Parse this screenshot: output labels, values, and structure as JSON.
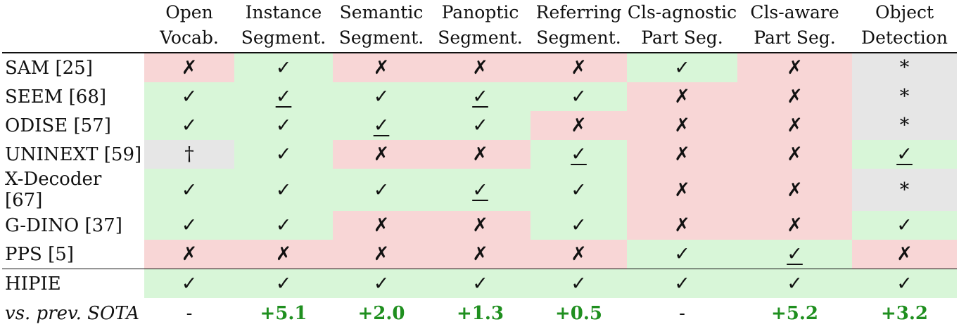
{
  "header": {
    "columns": [
      {
        "line1": "Open",
        "line2": "Vocab."
      },
      {
        "line1": "Instance",
        "line2": "Segment."
      },
      {
        "line1": "Semantic",
        "line2": "Segment."
      },
      {
        "line1": "Panoptic",
        "line2": "Segment."
      },
      {
        "line1": "Referring",
        "line2": "Segment."
      },
      {
        "line1": "Cls-agnostic",
        "line2": "Part Seg."
      },
      {
        "line1": "Cls-aware",
        "line2": "Part Seg."
      },
      {
        "line1": "Object",
        "line2": "Detection"
      }
    ]
  },
  "rows": [
    {
      "name": "SAM [25]",
      "cells": [
        "✗",
        "✓",
        "✗",
        "✗",
        "✗",
        "✓",
        "✗",
        "*"
      ]
    },
    {
      "name": "SEEM [68]",
      "cells": [
        "✓",
        "✓",
        "✓",
        "✓",
        "✓",
        "✗",
        "✗",
        "*"
      ]
    },
    {
      "name": "ODISE [57]",
      "cells": [
        "✓",
        "✓",
        "✓",
        "✓",
        "✗",
        "✗",
        "✗",
        "*"
      ]
    },
    {
      "name": "UNINEXT [59]",
      "cells": [
        "†",
        "✓",
        "✗",
        "✗",
        "✓",
        "✗",
        "✗",
        "✓"
      ]
    },
    {
      "name": "X-Decoder [67]",
      "cells": [
        "✓",
        "✓",
        "✓",
        "✓",
        "✓",
        "✗",
        "✗",
        "*"
      ]
    },
    {
      "name": "G-DINO [37]",
      "cells": [
        "✓",
        "✓",
        "✗",
        "✗",
        "✓",
        "✗",
        "✗",
        "✓"
      ]
    },
    {
      "name": "PPS [5]",
      "cells": [
        "✗",
        "✗",
        "✗",
        "✗",
        "✗",
        "✓",
        "✓",
        "✗"
      ]
    }
  ],
  "ours": {
    "name": "HIPIE",
    "cells": [
      "✓",
      "✓",
      "✓",
      "✓",
      "✓",
      "✓",
      "✓",
      "✓"
    ]
  },
  "sota": {
    "name": "vs. prev. SOTA",
    "cells": [
      "-",
      "+5.1",
      "+2.0",
      "+1.3",
      "+0.5",
      "-",
      "+5.2",
      "+3.2"
    ]
  },
  "colors": {
    "yes_bg": "#d8f6d8",
    "no_bg": "#f8d6d6",
    "na_bg": "#e6e6e6",
    "gain_text": "#1f8f1f"
  }
}
